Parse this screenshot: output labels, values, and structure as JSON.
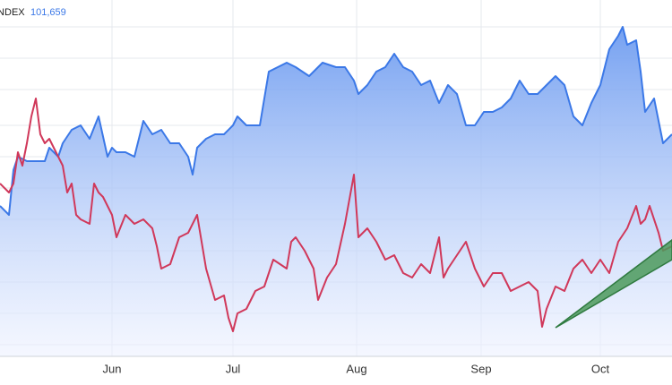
{
  "chart_data": {
    "type": "area",
    "title": "INDEX",
    "subtitle": "101,659",
    "xlim": [
      0,
      750
    ],
    "ylim": [
      0,
      398
    ],
    "grid": true,
    "xticks": [
      {
        "value": 125,
        "label": "Jun"
      },
      {
        "value": 260,
        "label": "Jul"
      },
      {
        "value": 398,
        "label": "Aug"
      },
      {
        "value": 537,
        "label": "Sep"
      },
      {
        "value": 670,
        "label": "Oct"
      }
    ],
    "series": [
      {
        "color": "#3b78e7",
        "fill": true,
        "x": [
          0,
          10,
          15,
          20,
          30,
          40,
          50,
          55,
          65,
          70,
          80,
          90,
          100,
          110,
          120,
          125,
          130,
          140,
          150,
          160,
          170,
          180,
          190,
          200,
          210,
          215,
          220,
          230,
          240,
          250,
          260,
          265,
          275,
          290,
          300,
          310,
          320,
          330,
          345,
          360,
          375,
          385,
          395,
          400,
          410,
          420,
          430,
          440,
          450,
          460,
          470,
          480,
          490,
          500,
          510,
          520,
          530,
          540,
          550,
          560,
          570,
          580,
          590,
          600,
          610,
          620,
          630,
          640,
          650,
          660,
          670,
          680,
          690,
          695,
          700,
          710,
          715,
          720,
          730,
          740,
          750
        ],
        "values": [
          168,
          158,
          208,
          223,
          218,
          218,
          218,
          233,
          223,
          238,
          253,
          258,
          243,
          268,
          223,
          233,
          228,
          228,
          223,
          263,
          248,
          253,
          238,
          238,
          223,
          203,
          233,
          243,
          248,
          248,
          258,
          268,
          258,
          258,
          318,
          323,
          328,
          323,
          313,
          328,
          323,
          323,
          308,
          293,
          303,
          318,
          323,
          338,
          323,
          318,
          303,
          308,
          283,
          303,
          293,
          258,
          258,
          273,
          273,
          278,
          288,
          308,
          293,
          293,
          303,
          313,
          303,
          268,
          258,
          283,
          303,
          343,
          358,
          368,
          348,
          353,
          318,
          273,
          288,
          238,
          248
        ]
      },
      {
        "color": "#d0385a",
        "fill": false,
        "x": [
          0,
          10,
          15,
          20,
          25,
          30,
          35,
          40,
          45,
          50,
          55,
          65,
          70,
          75,
          80,
          85,
          90,
          100,
          105,
          110,
          115,
          125,
          130,
          140,
          150,
          160,
          170,
          175,
          180,
          190,
          200,
          210,
          220,
          230,
          240,
          250,
          255,
          260,
          265,
          275,
          285,
          295,
          305,
          320,
          325,
          330,
          340,
          350,
          355,
          365,
          375,
          385,
          395,
          400,
          410,
          420,
          430,
          440,
          450,
          460,
          470,
          480,
          490,
          495,
          500,
          510,
          520,
          530,
          540,
          550,
          560,
          570,
          580,
          590,
          600,
          605,
          610,
          620,
          630,
          640,
          650,
          660,
          670,
          680,
          690,
          700,
          710,
          715,
          720,
          725,
          735,
          740,
          750
        ],
        "values": [
          193,
          183,
          193,
          228,
          213,
          238,
          268,
          288,
          248,
          238,
          243,
          223,
          213,
          183,
          193,
          158,
          153,
          148,
          193,
          183,
          178,
          158,
          133,
          158,
          148,
          153,
          143,
          123,
          98,
          103,
          133,
          138,
          158,
          98,
          63,
          68,
          43,
          28,
          48,
          53,
          73,
          78,
          108,
          98,
          128,
          133,
          118,
          98,
          63,
          88,
          103,
          148,
          203,
          133,
          143,
          128,
          108,
          113,
          93,
          88,
          103,
          93,
          133,
          88,
          98,
          113,
          128,
          98,
          78,
          93,
          93,
          73,
          78,
          83,
          73,
          33,
          53,
          78,
          73,
          98,
          108,
          93,
          108,
          93,
          128,
          143,
          168,
          148,
          153,
          168,
          138,
          118,
          123
        ]
      }
    ]
  }
}
